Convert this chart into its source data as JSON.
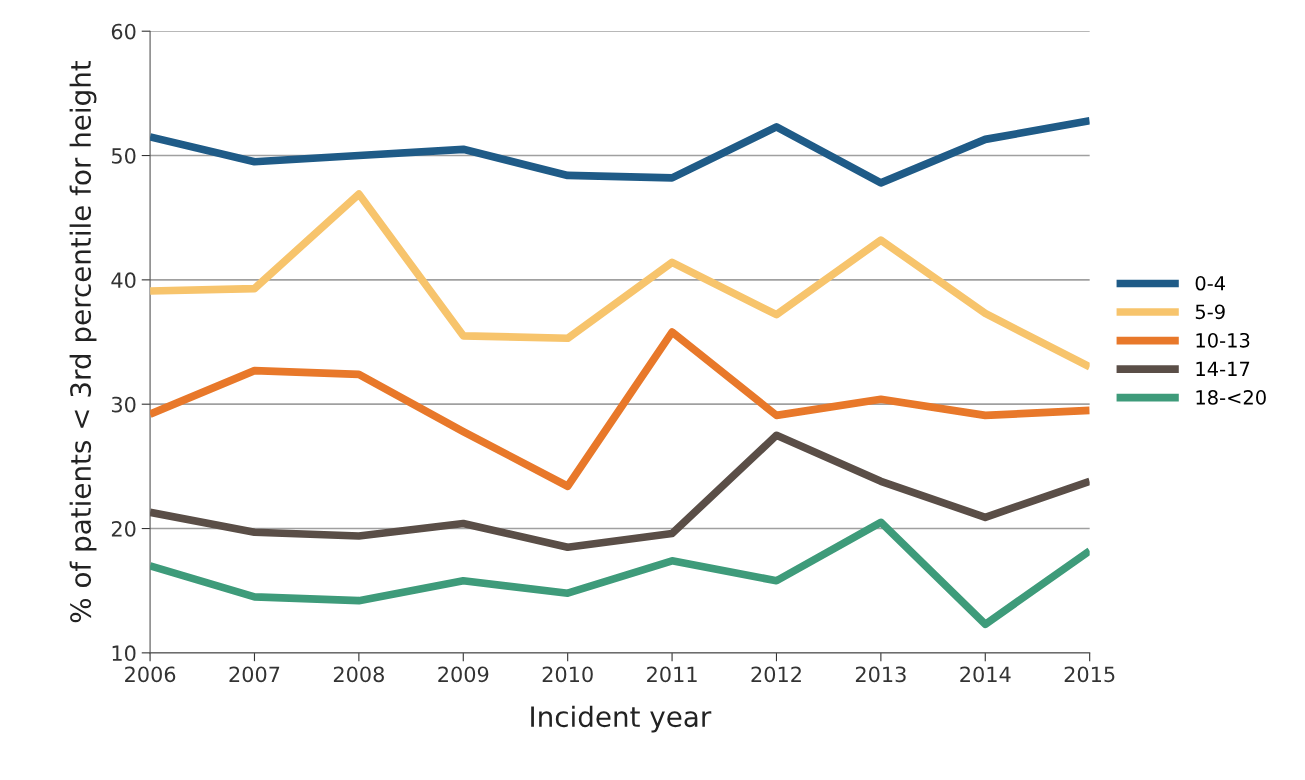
{
  "chart_data": {
    "type": "line",
    "xlabel": "Incident year",
    "ylabel": "% of patients < 3rd percentile for height",
    "x": [
      2006,
      2007,
      2008,
      2009,
      2010,
      2011,
      2012,
      2013,
      2014,
      2015
    ],
    "series": [
      {
        "name": "0-4",
        "color": "#1f5b87",
        "values": [
          51.5,
          49.5,
          50.0,
          50.5,
          48.4,
          48.2,
          52.3,
          47.8,
          51.3,
          52.8
        ]
      },
      {
        "name": "5-9",
        "color": "#f7c46c",
        "values": [
          39.1,
          39.3,
          46.9,
          35.5,
          35.3,
          41.4,
          37.2,
          43.2,
          37.3,
          33.0
        ]
      },
      {
        "name": "10-13",
        "color": "#e8782a",
        "values": [
          29.2,
          32.7,
          32.4,
          27.8,
          23.4,
          35.8,
          29.1,
          30.4,
          29.1,
          29.5
        ]
      },
      {
        "name": "14-17",
        "color": "#5a4e47",
        "values": [
          21.3,
          19.7,
          19.4,
          20.4,
          18.5,
          19.6,
          27.5,
          23.8,
          20.9,
          23.8
        ]
      },
      {
        "name": "18-<20",
        "color": "#3e9b7a",
        "values": [
          17.0,
          14.5,
          14.2,
          15.8,
          14.8,
          17.4,
          15.8,
          20.5,
          12.3,
          18.2
        ]
      }
    ],
    "xlim": [
      2006,
      2015
    ],
    "xticks": [
      2006,
      2007,
      2008,
      2009,
      2010,
      2011,
      2012,
      2013,
      2014,
      2015
    ],
    "ylim": [
      10,
      60
    ],
    "yticks": [
      10,
      20,
      30,
      40,
      50,
      60
    ],
    "grid": "y",
    "legend": "right",
    "marker": "none",
    "line_style": "solid"
  }
}
